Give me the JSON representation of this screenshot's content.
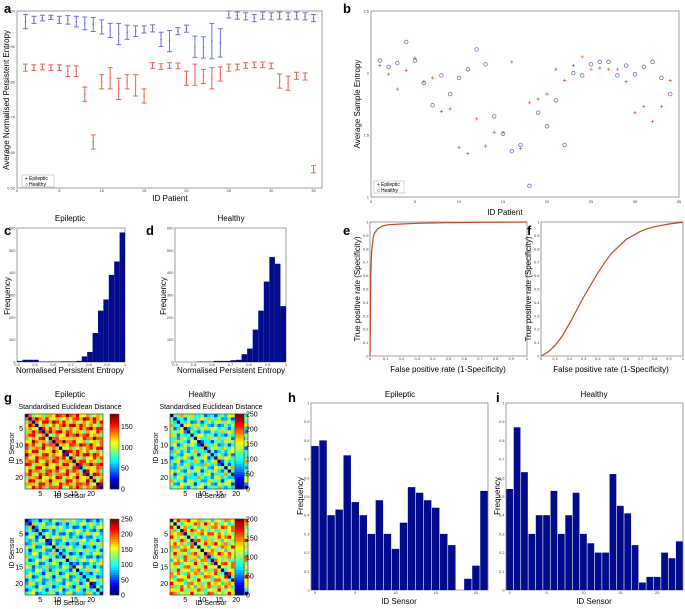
{
  "colors": {
    "epileptic": "#e8624a",
    "healthy": "#6b6fd6",
    "bar": "#000c8c",
    "roc": "#c8431c"
  },
  "chart_data": [
    {
      "id": "a",
      "panel_label": "a",
      "type": "scatter",
      "xlabel": "ID Patient",
      "ylabel": "Average Normalised Persistent Entropy",
      "xlim": [
        0,
        36
      ],
      "ylim": [
        0.5,
        1.0
      ],
      "xticks": [
        0,
        5,
        10,
        15,
        20,
        25,
        30,
        35
      ],
      "yticks": [
        0.5,
        0.6,
        0.7,
        0.8,
        0.9,
        1.0
      ],
      "legend": [
        "Epileptic",
        "Healthy"
      ],
      "series": [
        {
          "name": "Healthy",
          "mean": [
            0.97,
            0.975,
            0.98,
            0.982,
            0.975,
            0.975,
            0.97,
            0.965,
            0.962,
            0.955,
            0.945,
            0.935,
            0.94,
            0.943,
            0.948,
            0.951,
            0.92,
            0.915,
            0.943,
            0.95,
            0.899,
            0.897,
            0.915,
            0.91,
            0.99,
            0.987,
            0.985,
            0.98,
            0.987,
            0.985,
            0.987,
            0.985,
            0.987,
            0.985,
            0.98
          ],
          "err": [
            0.02,
            0.01,
            0.008,
            0.006,
            0.01,
            0.012,
            0.015,
            0.018,
            0.02,
            0.02,
            0.02,
            0.03,
            0.02,
            0.015,
            0.01,
            0.01,
            0.02,
            0.03,
            0.01,
            0.01,
            0.03,
            0.03,
            0.05,
            0.04,
            0.01,
            0.01,
            0.01,
            0.01,
            0.01,
            0.01,
            0.01,
            0.01,
            0.01,
            0.01,
            0.01
          ]
        },
        {
          "name": "Epileptic",
          "mean": [
            0.84,
            0.84,
            0.842,
            0.84,
            0.84,
            0.83,
            0.83,
            0.765,
            0.63,
            0.8,
            0.81,
            0.78,
            0.8,
            0.79,
            0.76,
            0.846,
            0.843,
            0.846,
            0.845,
            0.81,
            0.82,
            0.815,
            0.81,
            0.822,
            0.84,
            0.842,
            0.846,
            0.848,
            0.848,
            0.845,
            0.802,
            0.796,
            0.817,
            0.815,
            0.553
          ],
          "err": [
            0.01,
            0.008,
            0.008,
            0.008,
            0.008,
            0.015,
            0.015,
            0.02,
            0.02,
            0.02,
            0.03,
            0.03,
            0.02,
            0.03,
            0.02,
            0.008,
            0.008,
            0.008,
            0.008,
            0.02,
            0.03,
            0.02,
            0.03,
            0.02,
            0.01,
            0.008,
            0.008,
            0.008,
            0.008,
            0.008,
            0.02,
            0.02,
            0.01,
            0.01,
            0.01
          ]
        }
      ]
    },
    {
      "id": "b",
      "panel_label": "b",
      "type": "scatter",
      "xlabel": "ID Patient",
      "ylabel": "Average Sample Entropy",
      "xlim": [
        0,
        35
      ],
      "ylim": [
        1.0,
        2.5
      ],
      "xticks": [
        0,
        5,
        10,
        15,
        20,
        25,
        30,
        35
      ],
      "yticks": [
        1,
        1.5,
        2,
        2.5
      ],
      "legend": [
        "Epileptic",
        "Healthy"
      ],
      "series": [
        {
          "name": "Epileptic",
          "x": [
            1,
            2,
            3,
            4,
            5,
            6,
            7,
            8,
            9,
            10,
            11,
            12,
            13,
            14,
            15,
            16,
            17,
            18,
            19,
            20,
            21,
            22,
            23,
            24,
            25,
            26,
            27,
            28,
            29,
            30,
            31,
            32,
            33,
            34
          ],
          "y": [
            2.06,
            1.99,
            1.87,
            2.02,
            2.12,
            1.93,
            1.96,
            1.69,
            1.71,
            1.4,
            1.35,
            1.63,
            1.41,
            1.52,
            1.52,
            2.09,
            1.39,
            1.76,
            1.79,
            1.83,
            2.03,
            1.94,
            2.06,
            2.13,
            2.03,
            2.04,
            2.03,
            2.03,
            1.93,
            1.68,
            1.73,
            1.61,
            1.73,
            1.94
          ]
        },
        {
          "name": "Healthy",
          "x": [
            1,
            2,
            3,
            4,
            5,
            6,
            7,
            8,
            9,
            10,
            11,
            12,
            13,
            14,
            15,
            16,
            17,
            18,
            19,
            20,
            21,
            22,
            23,
            24,
            25,
            26,
            27,
            28,
            29,
            30,
            31,
            32,
            33,
            34
          ],
          "y": [
            2.1,
            2.05,
            2.08,
            2.25,
            2.1,
            1.92,
            1.74,
            1.98,
            1.83,
            1.96,
            2.03,
            2.19,
            2.07,
            1.65,
            1.51,
            1.37,
            1.42,
            1.09,
            1.68,
            1.57,
            1.78,
            1.42,
            2.0,
            1.98,
            2.07,
            2.09,
            2.09,
            1.98,
            2.06,
            1.99,
            2.05,
            2.09,
            1.96,
            1.83
          ]
        }
      ]
    },
    {
      "id": "c",
      "panel_label": "c",
      "type": "bar",
      "title": "Epileptic",
      "xlabel": "Normalised Persistent Entropy",
      "ylabel": "Frequency",
      "xlim": [
        0.4,
        1.0
      ],
      "ylim": [
        0,
        600
      ],
      "bins": [
        0.4,
        0.43,
        0.46,
        0.49,
        0.52,
        0.55,
        0.58,
        0.61,
        0.64,
        0.67,
        0.7,
        0.73,
        0.76,
        0.79,
        0.82,
        0.85,
        0.88,
        0.91,
        0.94,
        0.97
      ],
      "values": [
        5,
        10,
        10,
        10,
        2,
        2,
        2,
        2,
        3,
        3,
        3,
        5,
        25,
        45,
        130,
        230,
        280,
        390,
        450,
        580
      ]
    },
    {
      "id": "d",
      "panel_label": "d",
      "type": "bar",
      "title": "Healthy",
      "xlabel": "Normalised Persistent Entropy",
      "ylabel": "Frequency",
      "xlim": [
        0.4,
        1.0
      ],
      "ylim": [
        0,
        600
      ],
      "bins": [
        0.4,
        0.43,
        0.46,
        0.49,
        0.52,
        0.55,
        0.58,
        0.61,
        0.64,
        0.67,
        0.7,
        0.73,
        0.76,
        0.79,
        0.82,
        0.85,
        0.88,
        0.91,
        0.94,
        0.97
      ],
      "values": [
        0,
        0,
        0,
        0,
        2,
        2,
        2,
        5,
        5,
        5,
        8,
        10,
        35,
        60,
        145,
        230,
        360,
        470,
        440,
        250
      ]
    },
    {
      "id": "e",
      "panel_label": "e",
      "type": "line",
      "xlabel": "False positive rate (1-Specificity)",
      "ylabel": "True positive rate (Specificity)",
      "xlim": [
        0,
        1
      ],
      "ylim": [
        0,
        1
      ],
      "x": [
        0,
        0.005,
        0.01,
        0.02,
        0.03,
        0.05,
        0.08,
        0.12,
        0.2,
        0.3,
        0.5,
        0.7,
        1.0
      ],
      "y": [
        0,
        0.6,
        0.78,
        0.88,
        0.92,
        0.95,
        0.97,
        0.98,
        0.985,
        0.99,
        0.995,
        0.998,
        1.0
      ]
    },
    {
      "id": "f",
      "panel_label": "f",
      "type": "line",
      "xlabel": "False positive rate (1-Specificity)",
      "ylabel": "True positive rate (Specificity)",
      "xlim": [
        0,
        1
      ],
      "ylim": [
        0,
        1
      ],
      "x": [
        0,
        0.05,
        0.1,
        0.15,
        0.2,
        0.25,
        0.3,
        0.35,
        0.4,
        0.45,
        0.5,
        0.55,
        0.6,
        0.65,
        0.7,
        0.75,
        0.8,
        0.85,
        0.9,
        0.95,
        1.0
      ],
      "y": [
        0,
        0.03,
        0.08,
        0.15,
        0.24,
        0.34,
        0.44,
        0.53,
        0.62,
        0.7,
        0.77,
        0.82,
        0.87,
        0.9,
        0.93,
        0.95,
        0.965,
        0.975,
        0.985,
        0.992,
        1.0
      ]
    },
    {
      "id": "g",
      "panel_label": "g",
      "type": "heatmap",
      "titles": [
        "Epileptic",
        "Healthy"
      ],
      "matrix_title": "Standardised Euclidean Distance",
      "xlabel": "ID Sensor",
      "ylabel": "ID Sensor",
      "ticks": [
        5,
        10,
        15,
        20
      ],
      "size": 23,
      "colorbar_ticks": [
        [
          0,
          50,
          100,
          150
        ],
        [
          0,
          50,
          100,
          150,
          200,
          250
        ],
        [
          0,
          50,
          100,
          150,
          200,
          250
        ],
        [
          0,
          50,
          100,
          150,
          200
        ]
      ],
      "ranges": [
        [
          0,
          180
        ],
        [
          0,
          250
        ],
        [
          0,
          250
        ],
        [
          0,
          200
        ]
      ],
      "base_levels": [
        0.72,
        0.45,
        0.42,
        0.62
      ]
    },
    {
      "id": "h",
      "panel_label": "h",
      "type": "bar",
      "title": "Epileptic",
      "xlabel": "ID Sensor",
      "ylabel": "Frequency",
      "ylim": [
        0,
        1
      ],
      "values": [
        0.77,
        0.8,
        0.4,
        0.43,
        0.72,
        0.47,
        0.4,
        0.3,
        0.48,
        0.3,
        0.22,
        0.36,
        0.55,
        0.52,
        0.48,
        0.44,
        0.3,
        0.24,
        0,
        0.06,
        0.13,
        0.53
      ]
    },
    {
      "id": "i",
      "panel_label": "i",
      "type": "bar",
      "title": "Healthy",
      "xlabel": "ID Sensor",
      "ylabel": "Frequency",
      "ylim": [
        0,
        1
      ],
      "values": [
        0.54,
        0.87,
        0.63,
        0.3,
        0.4,
        0.4,
        0.53,
        0.3,
        0.4,
        0.52,
        0.3,
        0.25,
        0.2,
        0.2,
        0.62,
        0.45,
        0.41,
        0.24,
        0.04,
        0.07,
        0.07,
        0.2,
        0.17,
        0.26
      ]
    }
  ]
}
